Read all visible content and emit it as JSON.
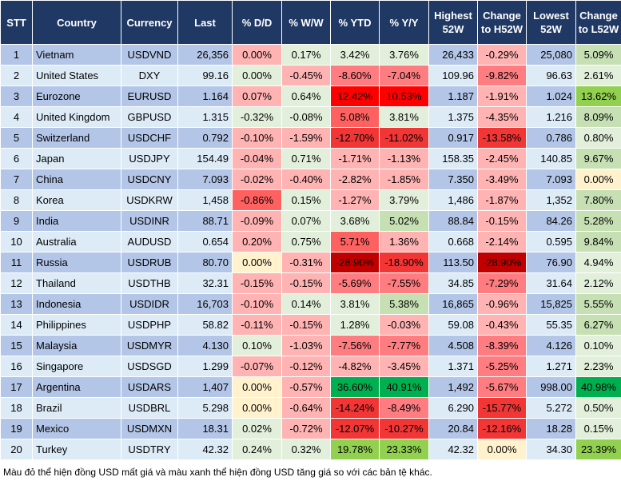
{
  "headers": [
    "STT",
    "Country",
    "Currency",
    "Last",
    "% D/D",
    "% W/W",
    "% YTD",
    "% Y/Y",
    "Highest 52W",
    "Change to H52W",
    "Lowest 52W",
    "Change to L52W"
  ],
  "palette": {
    "pk": "#ffb3b3",
    "lg": "#e2efda",
    "yl": "#fff2cc",
    "g1": "#c6e0b4",
    "g2": "#92d050",
    "g3": "#00b050",
    "r1": "#ff7c80",
    "r2": "#ff6161",
    "r3": "#f23535",
    "r4": "#ff0000",
    "r5": "#c00000"
  },
  "rows": [
    {
      "stt": "1",
      "country": "Vietnam",
      "currency": "USDVND",
      "last": "26,356",
      "dd": "0.00%",
      "ww": "0.17%",
      "ytd": "3.42%",
      "yy": "3.76%",
      "high": "26,433",
      "chg_high": "-0.29%",
      "low": "25,080",
      "chg_low": "5.09%",
      "colors": [
        "pk",
        "lg",
        "lg",
        "lg",
        "pk",
        "g1"
      ]
    },
    {
      "stt": "2",
      "country": "United States",
      "currency": "DXY",
      "last": "99.16",
      "dd": "0.00%",
      "ww": "-0.45%",
      "ytd": "-8.60%",
      "yy": "-7.04%",
      "high": "109.96",
      "chg_high": "-9.82%",
      "low": "96.63",
      "chg_low": "2.61%",
      "colors": [
        "lg",
        "pk",
        "r1",
        "r1",
        "r1",
        "lg"
      ]
    },
    {
      "stt": "3",
      "country": "Eurozone",
      "currency": "EURUSD",
      "last": "1.164",
      "dd": "0.07%",
      "ww": "0.64%",
      "ytd": "12.42%",
      "yy": "10.53%",
      "high": "1.187",
      "chg_high": "-1.91%",
      "low": "1.024",
      "chg_low": "13.62%",
      "colors": [
        "pk",
        "lg",
        "r4",
        "r4",
        "pk",
        "g2"
      ]
    },
    {
      "stt": "4",
      "country": "United Kingdom",
      "currency": "GBPUSD",
      "last": "1.315",
      "dd": "-0.32%",
      "ww": "-0.08%",
      "ytd": "5.08%",
      "yy": "3.81%",
      "high": "1.375",
      "chg_high": "-4.35%",
      "low": "1.216",
      "chg_low": "8.09%",
      "colors": [
        "lg",
        "lg",
        "r2",
        "lg",
        "pk",
        "g1"
      ]
    },
    {
      "stt": "5",
      "country": "Switzerland",
      "currency": "USDCHF",
      "last": "0.792",
      "dd": "-0.10%",
      "ww": "-1.59%",
      "ytd": "-12.70%",
      "yy": "-11.02%",
      "high": "0.917",
      "chg_high": "-13.58%",
      "low": "0.786",
      "chg_low": "0.80%",
      "colors": [
        "pk",
        "pk",
        "r3",
        "r3",
        "r3",
        "lg"
      ]
    },
    {
      "stt": "6",
      "country": "Japan",
      "currency": "USDJPY",
      "last": "154.49",
      "dd": "-0.04%",
      "ww": "0.71%",
      "ytd": "-1.71%",
      "yy": "-1.13%",
      "high": "158.35",
      "chg_high": "-2.45%",
      "low": "140.85",
      "chg_low": "9.67%",
      "colors": [
        "pk",
        "lg",
        "pk",
        "pk",
        "pk",
        "g1"
      ]
    },
    {
      "stt": "7",
      "country": "China",
      "currency": "USDCNY",
      "last": "7.093",
      "dd": "-0.02%",
      "ww": "-0.40%",
      "ytd": "-2.82%",
      "yy": "-1.85%",
      "high": "7.350",
      "chg_high": "-3.49%",
      "low": "7.093",
      "chg_low": "0.00%",
      "colors": [
        "pk",
        "pk",
        "pk",
        "pk",
        "pk",
        "yl"
      ]
    },
    {
      "stt": "8",
      "country": "Korea",
      "currency": "USDKRW",
      "last": "1,458",
      "dd": "-0.86%",
      "ww": "0.15%",
      "ytd": "-1.27%",
      "yy": "3.79%",
      "high": "1,486",
      "chg_high": "-1.87%",
      "low": "1,352",
      "chg_low": "7.80%",
      "colors": [
        "r2",
        "lg",
        "pk",
        "lg",
        "pk",
        "g1"
      ]
    },
    {
      "stt": "9",
      "country": "India",
      "currency": "USDINR",
      "last": "88.71",
      "dd": "-0.09%",
      "ww": "0.07%",
      "ytd": "3.68%",
      "yy": "5.02%",
      "high": "88.84",
      "chg_high": "-0.15%",
      "low": "84.26",
      "chg_low": "5.28%",
      "colors": [
        "pk",
        "lg",
        "lg",
        "g1",
        "pk",
        "g1"
      ]
    },
    {
      "stt": "10",
      "country": "Australia",
      "currency": "AUDUSD",
      "last": "0.654",
      "dd": "0.20%",
      "ww": "0.75%",
      "ytd": "5.71%",
      "yy": "1.36%",
      "high": "0.668",
      "chg_high": "-2.14%",
      "low": "0.595",
      "chg_low": "9.84%",
      "colors": [
        "pk",
        "lg",
        "r2",
        "pk",
        "pk",
        "g1"
      ]
    },
    {
      "stt": "11",
      "country": "Russia",
      "currency": "USDRUB",
      "last": "80.70",
      "dd": "0.00%",
      "ww": "-0.31%",
      "ytd": "-28.90%",
      "yy": "-18.90%",
      "high": "113.50",
      "chg_high": "-28.90%",
      "low": "76.90",
      "chg_low": "4.94%",
      "colors": [
        "yl",
        "pk",
        "r5",
        "r3",
        "r5",
        "lg"
      ]
    },
    {
      "stt": "12",
      "country": "Thailand",
      "currency": "USDTHB",
      "last": "32.31",
      "dd": "-0.15%",
      "ww": "-0.15%",
      "ytd": "-5.69%",
      "yy": "-7.55%",
      "high": "34.85",
      "chg_high": "-7.29%",
      "low": "31.64",
      "chg_low": "2.12%",
      "colors": [
        "pk",
        "pk",
        "r1",
        "r1",
        "r1",
        "lg"
      ]
    },
    {
      "stt": "13",
      "country": "Indonesia",
      "currency": "USDIDR",
      "last": "16,703",
      "dd": "-0.10%",
      "ww": "0.14%",
      "ytd": "3.81%",
      "yy": "5.38%",
      "high": "16,865",
      "chg_high": "-0.96%",
      "low": "15,825",
      "chg_low": "5.55%",
      "colors": [
        "pk",
        "lg",
        "lg",
        "g1",
        "pk",
        "g1"
      ]
    },
    {
      "stt": "14",
      "country": "Philippines",
      "currency": "USDPHP",
      "last": "58.82",
      "dd": "-0.11%",
      "ww": "-0.15%",
      "ytd": "1.28%",
      "yy": "-0.03%",
      "high": "59.08",
      "chg_high": "-0.43%",
      "low": "55.35",
      "chg_low": "6.27%",
      "colors": [
        "pk",
        "pk",
        "lg",
        "pk",
        "pk",
        "g1"
      ]
    },
    {
      "stt": "15",
      "country": "Malaysia",
      "currency": "USDMYR",
      "last": "4.130",
      "dd": "0.10%",
      "ww": "-1.03%",
      "ytd": "-7.56%",
      "yy": "-7.77%",
      "high": "4.508",
      "chg_high": "-8.39%",
      "low": "4.126",
      "chg_low": "0.10%",
      "colors": [
        "lg",
        "pk",
        "r1",
        "r1",
        "r1",
        "lg"
      ]
    },
    {
      "stt": "16",
      "country": "Singapore",
      "currency": "USDSGD",
      "last": "1.299",
      "dd": "-0.07%",
      "ww": "-0.12%",
      "ytd": "-4.82%",
      "yy": "-3.45%",
      "high": "1.371",
      "chg_high": "-5.25%",
      "low": "1.271",
      "chg_low": "2.23%",
      "colors": [
        "pk",
        "pk",
        "pk",
        "pk",
        "r1",
        "lg"
      ]
    },
    {
      "stt": "17",
      "country": "Argentina",
      "currency": "USDARS",
      "last": "1,407",
      "dd": "0.00%",
      "ww": "-0.57%",
      "ytd": "36.60%",
      "yy": "40.91%",
      "high": "1,492",
      "chg_high": "-5.67%",
      "low": "998.00",
      "chg_low": "40.98%",
      "colors": [
        "yl",
        "pk",
        "g3",
        "g3",
        "r1",
        "g3"
      ]
    },
    {
      "stt": "18",
      "country": "Brazil",
      "currency": "USDBRL",
      "last": "5.298",
      "dd": "0.00%",
      "ww": "-0.64%",
      "ytd": "-14.24%",
      "yy": "-8.49%",
      "high": "6.290",
      "chg_high": "-15.77%",
      "low": "5.272",
      "chg_low": "0.50%",
      "colors": [
        "yl",
        "pk",
        "r3",
        "r1",
        "r3",
        "lg"
      ]
    },
    {
      "stt": "19",
      "country": "Mexico",
      "currency": "USDMXN",
      "last": "18.31",
      "dd": "0.02%",
      "ww": "-0.72%",
      "ytd": "-12.07%",
      "yy": "-10.27%",
      "high": "20.84",
      "chg_high": "-12.16%",
      "low": "18.28",
      "chg_low": "0.15%",
      "colors": [
        "lg",
        "pk",
        "r3",
        "r3",
        "r3",
        "lg"
      ]
    },
    {
      "stt": "20",
      "country": "Turkey",
      "currency": "USDTRY",
      "last": "42.32",
      "dd": "0.24%",
      "ww": "0.32%",
      "ytd": "19.78%",
      "yy": "23.33%",
      "high": "42.32",
      "chg_high": "0.00%",
      "low": "34.30",
      "chg_low": "23.39%",
      "colors": [
        "lg",
        "lg",
        "g2",
        "g2",
        "yl",
        "g2"
      ]
    }
  ],
  "footnote": "Màu đỏ thể hiện đồng USD mất giá và màu xanh thể hiện đồng USD tăng giá so với các bản tệ khác."
}
